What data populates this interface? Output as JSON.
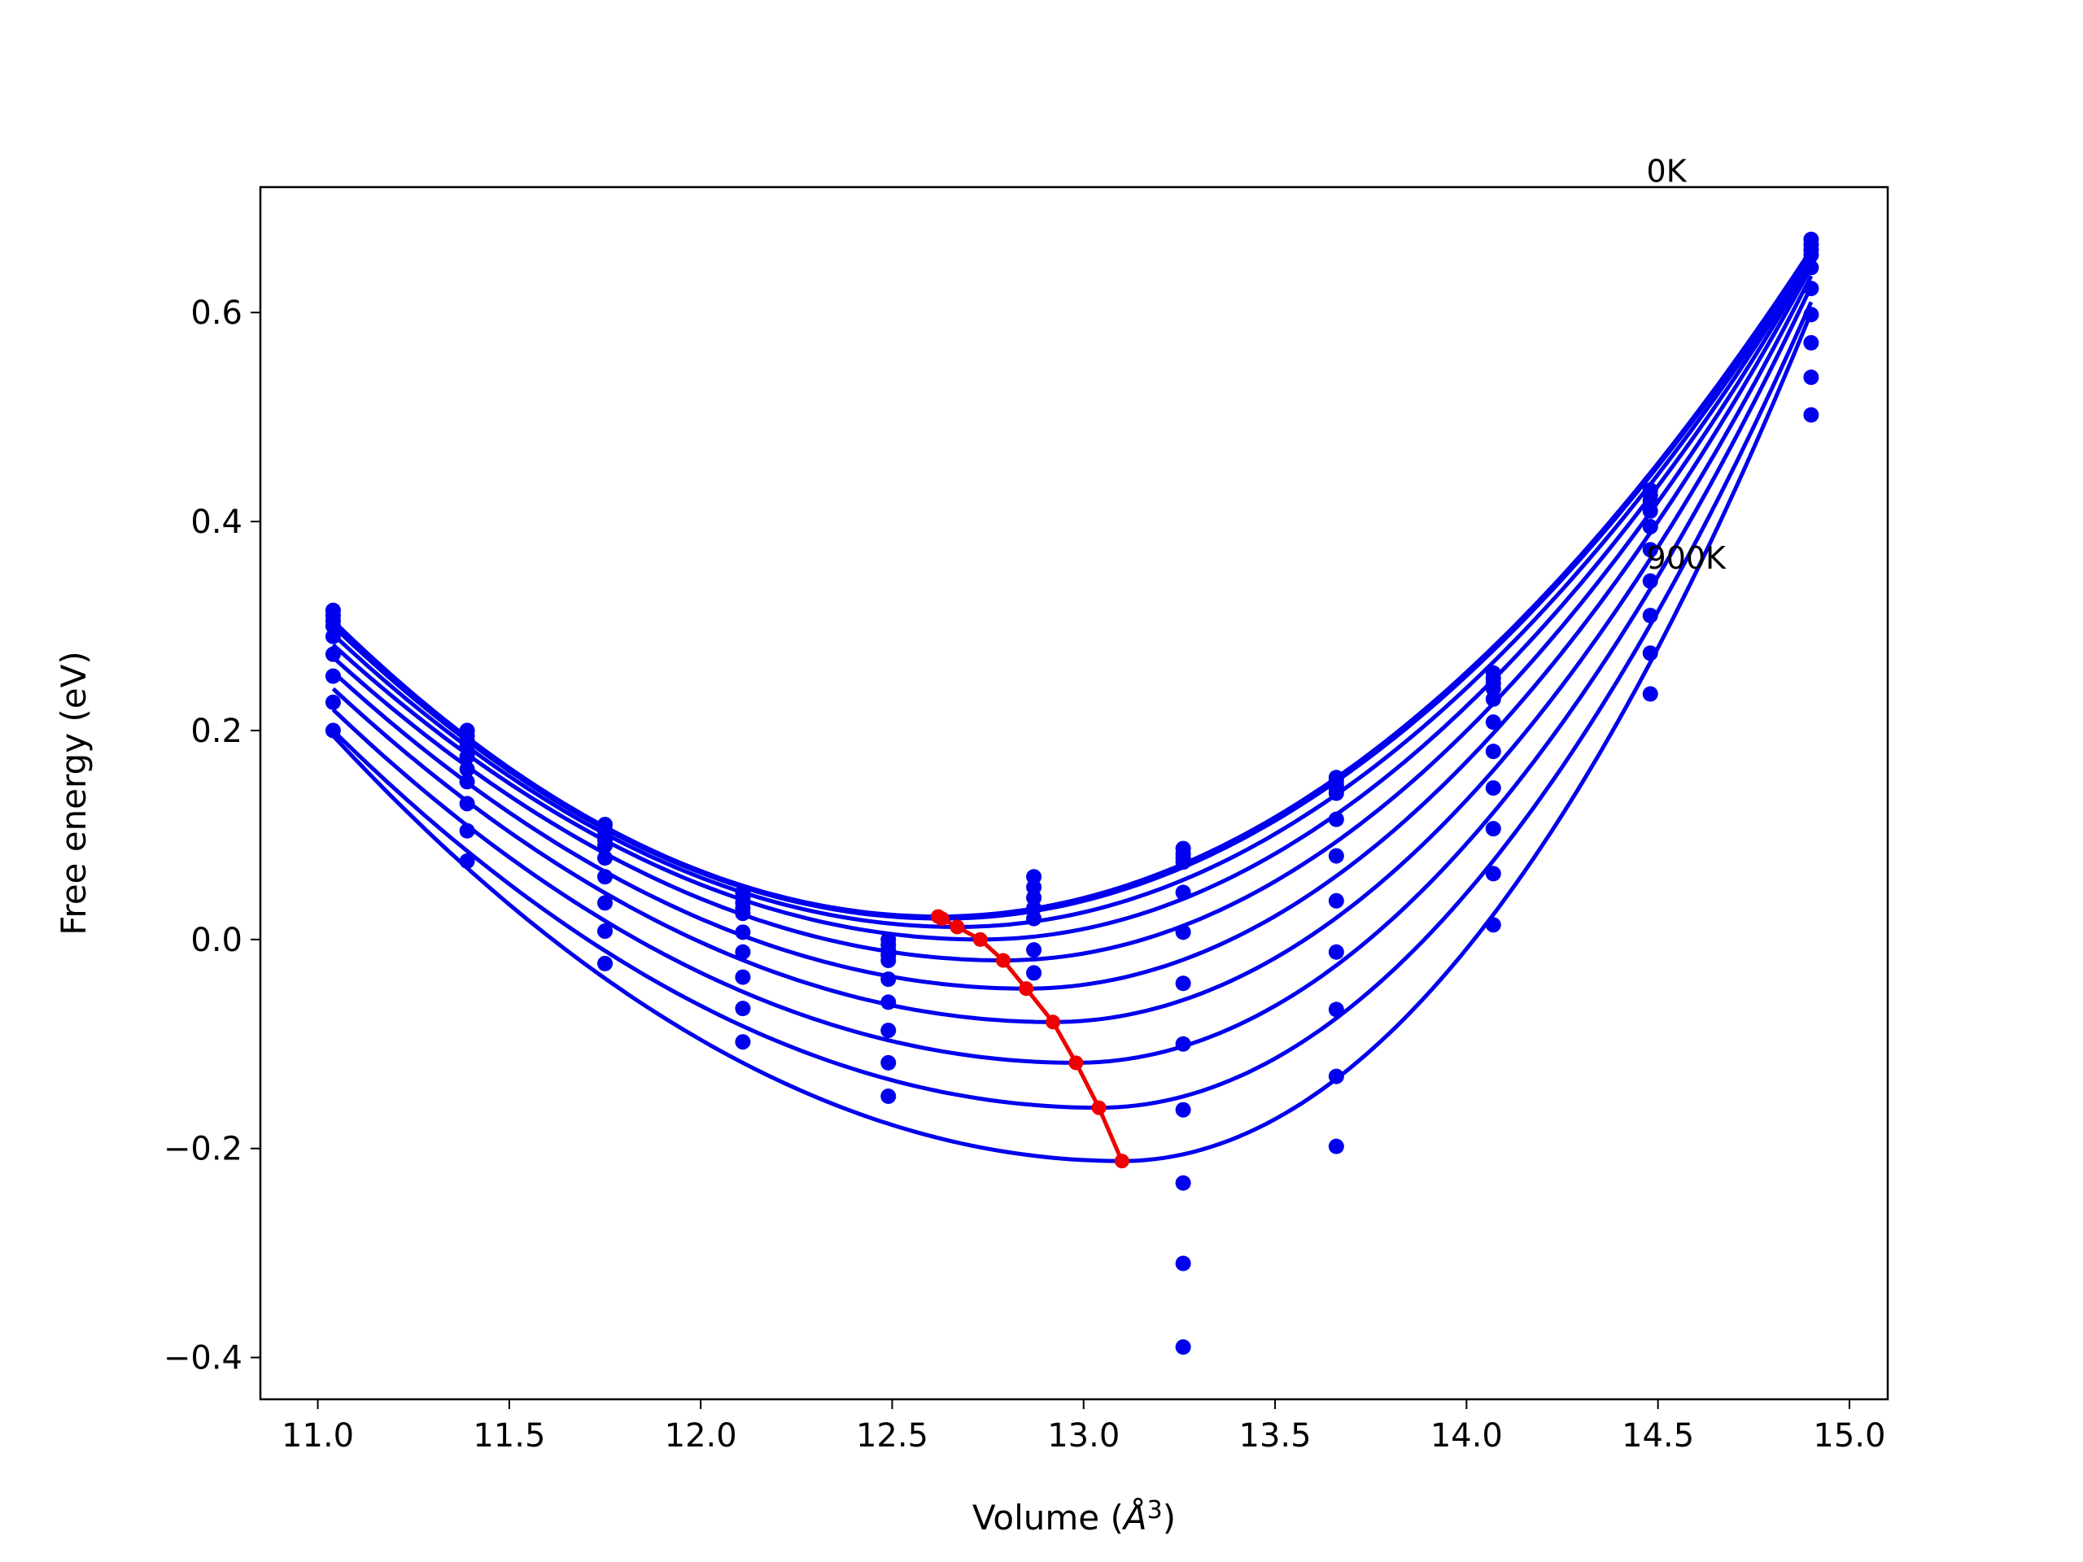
{
  "chart_data": {
    "type": "line",
    "title": "",
    "xlabel": "Volume",
    "xlabel_unit_symbol": "Å",
    "xlabel_unit_exponent": "3",
    "ylabel": "Free energy (eV)",
    "xlim": [
      10.85,
      15.1
    ],
    "ylim": [
      -0.44,
      0.72
    ],
    "x_ticks": [
      11.0,
      11.5,
      12.0,
      12.5,
      13.0,
      13.5,
      14.0,
      14.5,
      15.0
    ],
    "x_tick_labels": [
      "11.0",
      "11.5",
      "12.0",
      "12.5",
      "13.0",
      "13.5",
      "14.0",
      "14.5",
      "15.0"
    ],
    "y_ticks": [
      -0.4,
      -0.2,
      0.0,
      0.2,
      0.4,
      0.6
    ],
    "y_tick_labels": [
      "−0.4",
      "−0.2",
      "0.0",
      "0.2",
      "0.4",
      "0.6"
    ],
    "grid": false,
    "annotations": [
      {
        "text": "0K",
        "x": 14.47,
        "y": 0.725
      },
      {
        "text": "900K",
        "x": 14.47,
        "y": 0.355
      }
    ],
    "colors": {
      "fit_curves": "#0000ee",
      "points": "#0000ee",
      "equilibrium_line": "#ee0000"
    },
    "volumes": [
      11.04,
      11.39,
      11.75,
      12.11,
      12.49,
      12.87,
      13.26,
      13.66,
      14.07,
      14.48,
      14.9
    ],
    "series": [
      {
        "values": [
          0.315,
          0.2,
          0.11,
          0.045,
          0.0,
          0.06,
          0.087,
          0.155,
          0.255,
          0.43,
          0.67
        ]
      },
      {
        "values": [
          0.31,
          0.195,
          0.105,
          0.04,
          -0.005,
          0.05,
          0.082,
          0.152,
          0.25,
          0.425,
          0.665
        ]
      },
      {
        "values": [
          0.305,
          0.19,
          0.1,
          0.035,
          -0.01,
          0.04,
          0.078,
          0.148,
          0.245,
          0.42,
          0.66
        ]
      },
      {
        "values": [
          0.3,
          0.185,
          0.095,
          0.03,
          -0.015,
          0.03,
          0.074,
          0.144,
          0.24,
          0.41,
          0.655
        ]
      },
      {
        "values": [
          0.29,
          0.175,
          0.09,
          0.025,
          -0.02,
          0.02,
          0.045,
          0.14,
          0.23,
          0.395,
          0.643
        ]
      },
      {
        "values": [
          0.273,
          0.163,
          0.078,
          0.007,
          -0.038,
          -0.01,
          0.007,
          0.115,
          0.208,
          0.373,
          0.623
        ]
      },
      {
        "values": [
          0.252,
          0.151,
          0.06,
          -0.012,
          -0.06,
          -0.032,
          -0.042,
          0.08,
          0.18,
          0.343,
          0.598
        ]
      },
      {
        "values": [
          0.227,
          0.13,
          0.035,
          -0.036,
          -0.087,
          null,
          -0.1,
          0.037,
          0.145,
          0.31,
          0.571
        ]
      },
      {
        "values": [
          0.2,
          0.104,
          0.008,
          -0.066,
          -0.118,
          null,
          -0.163,
          -0.012,
          0.106,
          0.274,
          0.538
        ]
      },
      {
        "values": [
          null,
          0.075,
          -0.023,
          -0.098,
          -0.15,
          null,
          -0.233,
          -0.067,
          0.063,
          0.235,
          0.502
        ]
      },
      {
        "values": [
          null,
          null,
          null,
          null,
          null,
          null,
          -0.31,
          -0.131,
          0.014,
          null,
          null
        ]
      },
      {
        "values": [
          null,
          null,
          null,
          null,
          null,
          null,
          -0.39,
          -0.198,
          null,
          null,
          null
        ]
      }
    ],
    "fit_curves": [
      {
        "v0": 12.62,
        "e0": 0.022,
        "v_left": 11.04,
        "e_left": 0.305,
        "v_right": 14.9,
        "e_right": 0.66
      },
      {
        "v0": 12.63,
        "e0": 0.02,
        "v_left": 11.04,
        "e_left": 0.3,
        "v_right": 14.9,
        "e_right": 0.658
      },
      {
        "v0": 12.67,
        "e0": 0.012,
        "v_left": 11.04,
        "e_left": 0.292,
        "v_right": 14.9,
        "e_right": 0.655
      },
      {
        "v0": 12.73,
        "e0": 0.0,
        "v_left": 11.04,
        "e_left": 0.282,
        "v_right": 14.9,
        "e_right": 0.652
      },
      {
        "v0": 12.79,
        "e0": -0.02,
        "v_left": 11.04,
        "e_left": 0.27,
        "v_right": 14.9,
        "e_right": 0.648
      },
      {
        "v0": 12.85,
        "e0": -0.047,
        "v_left": 11.04,
        "e_left": 0.256,
        "v_right": 14.9,
        "e_right": 0.643
      },
      {
        "v0": 12.92,
        "e0": -0.079,
        "v_left": 11.04,
        "e_left": 0.24,
        "v_right": 14.9,
        "e_right": 0.635
      },
      {
        "v0": 12.98,
        "e0": -0.118,
        "v_left": 11.04,
        "e_left": 0.22,
        "v_right": 14.9,
        "e_right": 0.625
      },
      {
        "v0": 13.04,
        "e0": -0.161,
        "v_left": 11.04,
        "e_left": 0.2,
        "v_right": 14.9,
        "e_right": 0.61
      },
      {
        "v0": 13.1,
        "e0": -0.212,
        "v_left": 11.04,
        "e_left": 0.195,
        "v_right": 14.9,
        "e_right": 0.6
      }
    ],
    "equilibrium": {
      "x": [
        12.62,
        12.63,
        12.67,
        12.73,
        12.79,
        12.85,
        12.92,
        12.98,
        13.04,
        13.1
      ],
      "y": [
        0.022,
        0.02,
        0.012,
        0.0,
        -0.02,
        -0.047,
        -0.079,
        -0.118,
        -0.161,
        -0.212
      ]
    }
  }
}
